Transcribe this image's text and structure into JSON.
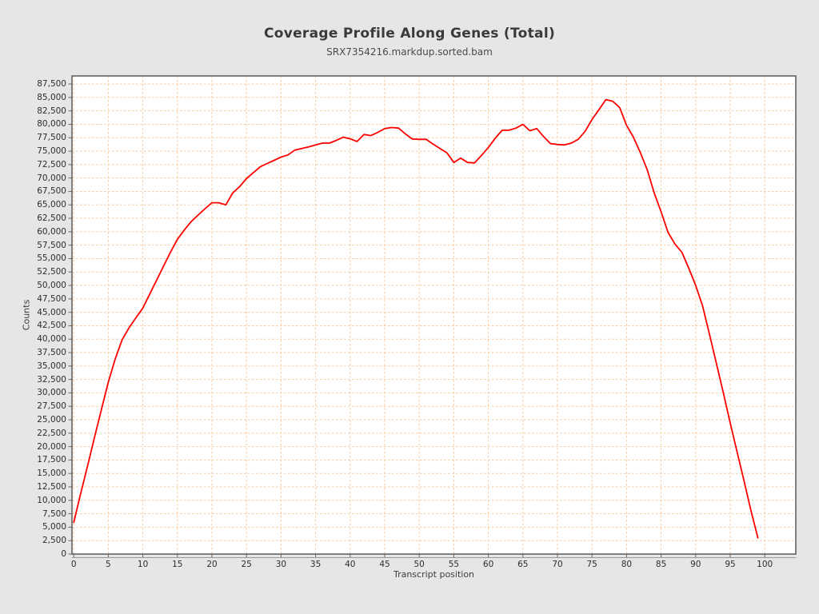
{
  "page": {
    "background_color": "#e6e6e6",
    "plot_background_color": "#ffffff",
    "frame_color": "#5a5a5a",
    "tick_color": "#666666",
    "grid_color": "#f6c9a0"
  },
  "chart_data": {
    "type": "line",
    "title": "Coverage Profile Along Genes (Total)",
    "subtitle": "SRX7354216.markdup.sorted.bam",
    "xlabel": "Transcript position",
    "ylabel": "Counts",
    "grid": "dashed",
    "legend_position": "none",
    "xlim": [
      0,
      104
    ],
    "ylim": [
      0,
      89000
    ],
    "x_ticks": [
      0,
      5,
      10,
      15,
      20,
      25,
      30,
      35,
      40,
      45,
      50,
      55,
      60,
      65,
      70,
      75,
      80,
      85,
      90,
      95,
      100
    ],
    "y_ticks": [
      0,
      2500,
      5000,
      7500,
      10000,
      12500,
      15000,
      17500,
      20000,
      22500,
      25000,
      27500,
      30000,
      32500,
      35000,
      37500,
      40000,
      42500,
      45000,
      47500,
      50000,
      52500,
      55000,
      57500,
      60000,
      62500,
      65000,
      67500,
      70000,
      72500,
      75000,
      77500,
      80000,
      82500,
      85000,
      87500
    ],
    "series": [
      {
        "name": "coverage",
        "color": "#fe0000",
        "x_start": 0,
        "x_step": 1,
        "values": [
          5900,
          11200,
          16400,
          21700,
          26900,
          32000,
          36300,
          39900,
          42100,
          44000,
          45800,
          48400,
          51000,
          53600,
          56200,
          58600,
          60300,
          61900,
          63100,
          64300,
          65400,
          65400,
          65000,
          67200,
          68400,
          69900,
          71000,
          72100,
          72700,
          73300,
          73900,
          74300,
          75200,
          75500,
          75800,
          76150,
          76500,
          76500,
          77000,
          77600,
          77300,
          76800,
          78100,
          77900,
          78500,
          79200,
          79400,
          79300,
          78200,
          77250,
          77200,
          77200,
          76300,
          75500,
          74700,
          72900,
          73700,
          72900,
          72800,
          74200,
          75700,
          77400,
          78900,
          78900,
          79300,
          80000,
          78800,
          79200,
          77700,
          76400,
          76250,
          76150,
          76500,
          77200,
          78700,
          80900,
          82700,
          84600,
          84300,
          83100,
          79800,
          77600,
          74700,
          71500,
          67200,
          63700,
          59900,
          57700,
          56200,
          53200,
          50000,
          46200,
          40900,
          35500,
          30000,
          24400,
          19000,
          13600,
          8100,
          3000
        ]
      }
    ]
  }
}
